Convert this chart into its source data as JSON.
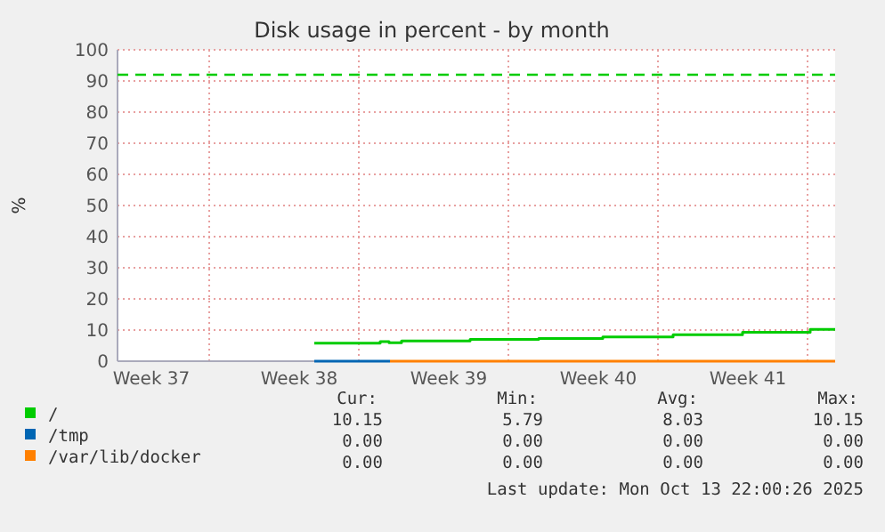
{
  "chart_data": {
    "type": "step",
    "title": "Disk usage in percent - by month",
    "ylabel": "%",
    "xlim": [
      "2025-09-10T08:00",
      "2025-10-13T22:00"
    ],
    "ylim": [
      0,
      100
    ],
    "yticks": [
      0,
      10,
      20,
      30,
      40,
      50,
      60,
      70,
      80,
      90,
      100
    ],
    "xticks": [
      {
        "value": "2025-09-11T22:00",
        "label": "Week 37"
      },
      {
        "value": "2025-09-14T15:00",
        "label": null
      },
      {
        "value": "2025-09-18T20:00",
        "label": "Week 38"
      },
      {
        "value": "2025-09-21T15:00",
        "label": null
      },
      {
        "value": "2025-09-25T20:00",
        "label": "Week 39"
      },
      {
        "value": "2025-09-28T15:00",
        "label": null
      },
      {
        "value": "2025-10-02T20:00",
        "label": "Week 40"
      },
      {
        "value": "2025-10-05T15:00",
        "label": null
      },
      {
        "value": "2025-10-09T20:00",
        "label": "Week 41"
      },
      {
        "value": "2025-10-12T15:00",
        "label": null
      }
    ],
    "grid": true,
    "legend": "bottom",
    "ref_lines": [
      {
        "axis": "y",
        "value": 92,
        "color": "#00cc00",
        "line_style": "dashed"
      }
    ],
    "series": [
      {
        "name": "/",
        "color": "#00cc00",
        "x": [
          "2025-09-19T13:00",
          "2025-09-22T15:00",
          "2025-09-23T01:00",
          "2025-09-23T15:00",
          "2025-09-26T20:00",
          "2025-09-30T01:00",
          "2025-10-03T01:00",
          "2025-10-06T08:00",
          "2025-10-09T14:00",
          "2025-10-12T18:00",
          "2025-10-13T22:00"
        ],
        "values": [
          5.8,
          6.3,
          5.9,
          6.5,
          7.0,
          7.3,
          7.8,
          8.5,
          9.3,
          10.2,
          10.2
        ]
      },
      {
        "name": "/tmp",
        "color": "#0066b3",
        "x": [
          "2025-09-19T13:00",
          "2025-09-23T02:00"
        ],
        "values": [
          0,
          0
        ]
      },
      {
        "name": "/var/lib/docker",
        "color": "#ff8000",
        "x": [
          "2025-09-23T02:00",
          "2025-10-13T22:00"
        ],
        "values": [
          0,
          0
        ]
      }
    ],
    "annotations": [
      "Cur:",
      "Min:",
      "Avg:",
      "Max:",
      "10.15",
      "5.79",
      "8.03",
      "10.15",
      "0.00",
      "0.00",
      "0.00",
      "0.00",
      "0.00",
      "0.00",
      "0.00",
      "0.00",
      "Last update: Mon Oct 13 22:00:26 2025"
    ]
  }
}
